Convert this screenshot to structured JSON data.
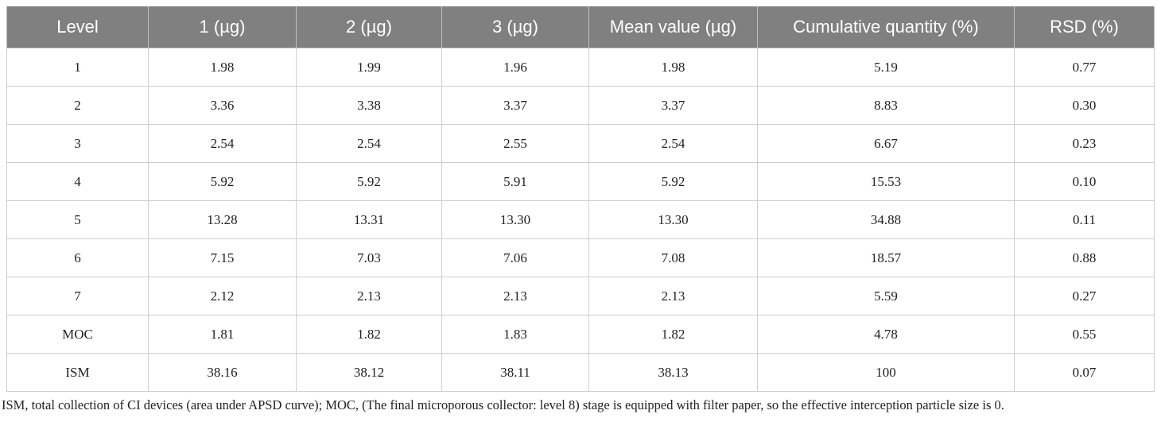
{
  "table": {
    "header": [
      "Level",
      "1 (µg)",
      "2 (µg)",
      "3 (µg)",
      "Mean value (µg)",
      "Cumulative quantity (%)",
      "RSD (%)"
    ],
    "rows": [
      [
        "1",
        "1.98",
        "1.99",
        "1.96",
        "1.98",
        "5.19",
        "0.77"
      ],
      [
        "2",
        "3.36",
        "3.38",
        "3.37",
        "3.37",
        "8.83",
        "0.30"
      ],
      [
        "3",
        "2.54",
        "2.54",
        "2.55",
        "2.54",
        "6.67",
        "0.23"
      ],
      [
        "4",
        "5.92",
        "5.92",
        "5.91",
        "5.92",
        "15.53",
        "0.10"
      ],
      [
        "5",
        "13.28",
        "13.31",
        "13.30",
        "13.30",
        "34.88",
        "0.11"
      ],
      [
        "6",
        "7.15",
        "7.03",
        "7.06",
        "7.08",
        "18.57",
        "0.88"
      ],
      [
        "7",
        "2.12",
        "2.13",
        "2.13",
        "2.13",
        "5.59",
        "0.27"
      ],
      [
        "MOC",
        "1.81",
        "1.82",
        "1.83",
        "1.82",
        "4.78",
        "0.55"
      ],
      [
        "ISM",
        "38.16",
        "38.12",
        "38.11",
        "38.13",
        "100",
        "0.07"
      ]
    ]
  },
  "footnote": "ISM, total collection of CI devices (area under APSD curve); MOC, (The final microporous collector: level 8) stage is equipped with filter paper, so the effective interception particle size is 0."
}
